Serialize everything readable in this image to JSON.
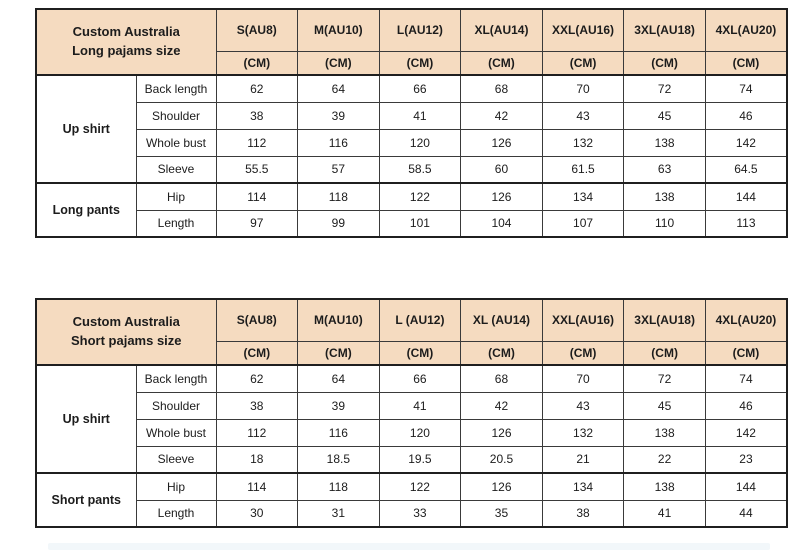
{
  "colors": {
    "header_bg": "#F5DBC0",
    "border_dark": "#1f1f1f",
    "border_mid": "#3a3a3a",
    "border_light": "#8f8f8f",
    "text_dark": "#1c1c1c",
    "text_value": "#3c3c3c",
    "footer_strip": "#f2f7fa"
  },
  "chart_data": [
    {
      "type": "table",
      "title": "Custom Australia Long pajams size",
      "title_lines": [
        "Custom Australia",
        "Long pajams size"
      ],
      "unit_label": "(CM)",
      "size_columns": [
        "S(AU8)",
        "M(AU10)",
        "L(AU12)",
        "XL(AU14)",
        "XXL(AU16)",
        "3XL(AU18)",
        "4XL(AU20)"
      ],
      "groups": [
        {
          "name": "Up shirt",
          "rows": [
            {
              "label": "Back length",
              "values": [
                "62",
                "64",
                "66",
                "68",
                "70",
                "72",
                "74"
              ]
            },
            {
              "label": "Shoulder",
              "values": [
                "38",
                "39",
                "41",
                "42",
                "43",
                "45",
                "46"
              ]
            },
            {
              "label": "Whole bust",
              "values": [
                "112",
                "116",
                "120",
                "126",
                "132",
                "138",
                "142"
              ]
            },
            {
              "label": "Sleeve",
              "values": [
                "55.5",
                "57",
                "58.5",
                "60",
                "61.5",
                "63",
                "64.5"
              ]
            }
          ]
        },
        {
          "name": "Long pants",
          "rows": [
            {
              "label": "Hip",
              "values": [
                "114",
                "118",
                "122",
                "126",
                "134",
                "138",
                "144"
              ]
            },
            {
              "label": "Length",
              "values": [
                "97",
                "99",
                "101",
                "104",
                "107",
                "110",
                "113"
              ]
            }
          ]
        }
      ]
    },
    {
      "type": "table",
      "title": "Custom Australia Short pajams size",
      "title_lines": [
        "Custom Australia",
        "Short pajams size"
      ],
      "unit_label": "(CM)",
      "size_columns": [
        "S(AU8)",
        "M(AU10)",
        "L (AU12)",
        "XL (AU14)",
        "XXL(AU16)",
        "3XL(AU18)",
        "4XL(AU20)"
      ],
      "groups": [
        {
          "name": "Up shirt",
          "rows": [
            {
              "label": "Back length",
              "values": [
                "62",
                "64",
                "66",
                "68",
                "70",
                "72",
                "74"
              ]
            },
            {
              "label": "Shoulder",
              "values": [
                "38",
                "39",
                "41",
                "42",
                "43",
                "45",
                "46"
              ]
            },
            {
              "label": "Whole bust",
              "values": [
                "112",
                "116",
                "120",
                "126",
                "132",
                "138",
                "142"
              ]
            },
            {
              "label": "Sleeve",
              "values": [
                "18",
                "18.5",
                "19.5",
                "20.5",
                "21",
                "22",
                "23"
              ]
            }
          ]
        },
        {
          "name": "Short pants",
          "rows": [
            {
              "label": "Hip",
              "values": [
                "114",
                "118",
                "122",
                "126",
                "134",
                "138",
                "144"
              ]
            },
            {
              "label": "Length",
              "values": [
                "30",
                "31",
                "33",
                "35",
                "38",
                "41",
                "44"
              ]
            }
          ]
        }
      ]
    }
  ]
}
